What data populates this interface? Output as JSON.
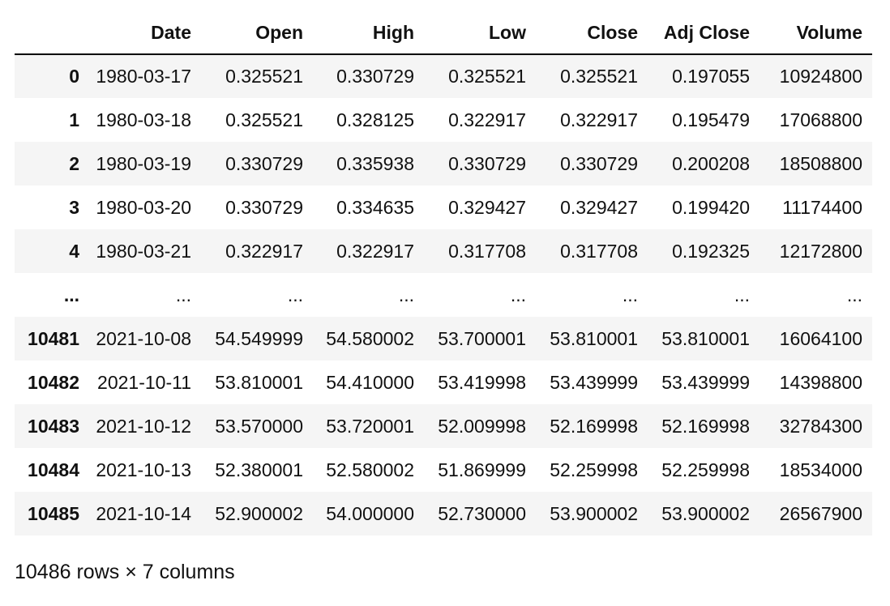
{
  "table": {
    "index_header": "",
    "columns": [
      "Date",
      "Open",
      "High",
      "Low",
      "Close",
      "Adj Close",
      "Volume"
    ],
    "rows": [
      {
        "index": "0",
        "cells": [
          "1980-03-17",
          "0.325521",
          "0.330729",
          "0.325521",
          "0.325521",
          "0.197055",
          "10924800"
        ]
      },
      {
        "index": "1",
        "cells": [
          "1980-03-18",
          "0.325521",
          "0.328125",
          "0.322917",
          "0.322917",
          "0.195479",
          "17068800"
        ]
      },
      {
        "index": "2",
        "cells": [
          "1980-03-19",
          "0.330729",
          "0.335938",
          "0.330729",
          "0.330729",
          "0.200208",
          "18508800"
        ]
      },
      {
        "index": "3",
        "cells": [
          "1980-03-20",
          "0.330729",
          "0.334635",
          "0.329427",
          "0.329427",
          "0.199420",
          "11174400"
        ]
      },
      {
        "index": "4",
        "cells": [
          "1980-03-21",
          "0.322917",
          "0.322917",
          "0.317708",
          "0.317708",
          "0.192325",
          "12172800"
        ]
      },
      {
        "index": "...",
        "cells": [
          "...",
          "...",
          "...",
          "...",
          "...",
          "...",
          "..."
        ]
      },
      {
        "index": "10481",
        "cells": [
          "2021-10-08",
          "54.549999",
          "54.580002",
          "53.700001",
          "53.810001",
          "53.810001",
          "16064100"
        ]
      },
      {
        "index": "10482",
        "cells": [
          "2021-10-11",
          "53.810001",
          "54.410000",
          "53.419998",
          "53.439999",
          "53.439999",
          "14398800"
        ]
      },
      {
        "index": "10483",
        "cells": [
          "2021-10-12",
          "53.570000",
          "53.720001",
          "52.009998",
          "52.169998",
          "52.169998",
          "32784300"
        ]
      },
      {
        "index": "10484",
        "cells": [
          "2021-10-13",
          "52.380001",
          "52.580002",
          "51.869999",
          "52.259998",
          "52.259998",
          "18534000"
        ]
      },
      {
        "index": "10485",
        "cells": [
          "2021-10-14",
          "52.900002",
          "54.000000",
          "52.730000",
          "53.900002",
          "53.900002",
          "26567900"
        ]
      }
    ]
  },
  "caption": "10486 rows × 7 columns"
}
